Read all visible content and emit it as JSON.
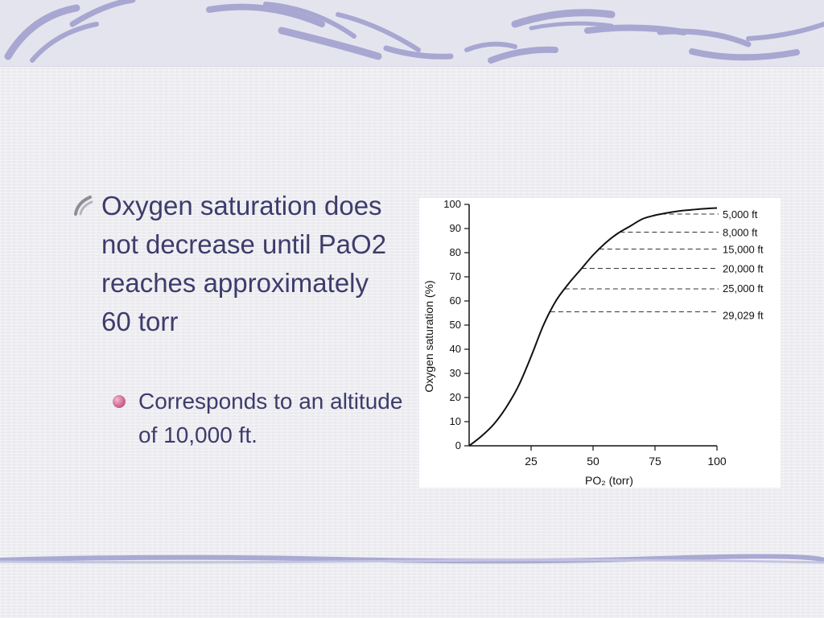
{
  "slide": {
    "bullet": "Oxygen saturation does not decrease until PaO2 reaches approximately 60 torr",
    "sub_bullet": "Corresponds to an altitude of 10,000 ft.",
    "colors": {
      "text": "#3d3c6b",
      "accent": "#8f8fc4",
      "sub_bullet_dot": "#d06a93"
    }
  },
  "chart_data": {
    "type": "line",
    "xlabel": "PO₂ (torr)",
    "ylabel": "Oxygen saturation (%)",
    "xlim": [
      0,
      100
    ],
    "ylim": [
      0,
      100
    ],
    "xticks": [
      25,
      50,
      75,
      100
    ],
    "yticks": [
      0,
      10,
      20,
      30,
      40,
      50,
      60,
      70,
      80,
      90,
      100
    ],
    "grid": false,
    "series": [
      {
        "x": [
          0,
          5,
          10,
          15,
          20,
          25,
          30,
          35,
          40,
          45,
          50,
          55,
          60,
          65,
          70,
          75,
          80,
          85,
          90,
          95,
          100
        ],
        "y": [
          0,
          4,
          9,
          16,
          25,
          37,
          50,
          60,
          67,
          73,
          79,
          84,
          88,
          91,
          94,
          95.5,
          96.5,
          97.3,
          97.8,
          98.2,
          98.5
        ]
      }
    ],
    "annotations": [
      {
        "label": "5,000 ft",
        "saturation": 96
      },
      {
        "label": "8,000 ft",
        "saturation": 88.5
      },
      {
        "label": "15,000 ft",
        "saturation": 81.5
      },
      {
        "label": "20,000 ft",
        "saturation": 73.5
      },
      {
        "label": "25,000 ft",
        "saturation": 65
      },
      {
        "label": "29,029 ft",
        "saturation": 55.5
      }
    ]
  }
}
